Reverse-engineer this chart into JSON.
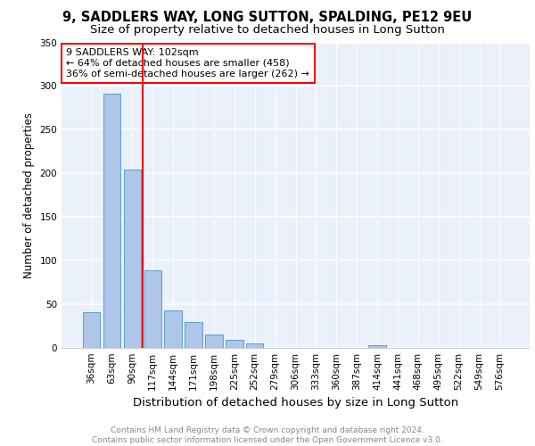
{
  "title_line1": "9, SADDLERS WAY, LONG SUTTON, SPALDING, PE12 9EU",
  "title_line2": "Size of property relative to detached houses in Long Sutton",
  "xlabel": "Distribution of detached houses by size in Long Sutton",
  "ylabel": "Number of detached properties",
  "categories": [
    "36sqm",
    "63sqm",
    "90sqm",
    "117sqm",
    "144sqm",
    "171sqm",
    "198sqm",
    "225sqm",
    "252sqm",
    "279sqm",
    "306sqm",
    "333sqm",
    "360sqm",
    "387sqm",
    "414sqm",
    "441sqm",
    "468sqm",
    "495sqm",
    "522sqm",
    "549sqm",
    "576sqm"
  ],
  "values": [
    41,
    291,
    204,
    89,
    43,
    30,
    15,
    9,
    5,
    0,
    0,
    0,
    0,
    0,
    3,
    0,
    0,
    0,
    0,
    0,
    0
  ],
  "bar_color": "#aec6e8",
  "bar_edge_color": "#5a9fd4",
  "vline_color": "red",
  "vline_x": 2.5,
  "annotation_text": "9 SADDLERS WAY: 102sqm\n← 64% of detached houses are smaller (458)\n36% of semi-detached houses are larger (262) →",
  "annotation_box_color": "white",
  "annotation_box_edge_color": "red",
  "ylim": [
    0,
    350
  ],
  "yticks": [
    0,
    50,
    100,
    150,
    200,
    250,
    300,
    350
  ],
  "background_color": "#eaf1fb",
  "grid_color": "white",
  "footnote": "Contains HM Land Registry data © Crown copyright and database right 2024.\nContains public sector information licensed under the Open Government Licence v3.0.",
  "title_fontsize": 10.5,
  "subtitle_fontsize": 9.5,
  "xlabel_fontsize": 9.5,
  "ylabel_fontsize": 8.5,
  "tick_fontsize": 7.5,
  "annot_fontsize": 8,
  "footnote_fontsize": 6.5
}
